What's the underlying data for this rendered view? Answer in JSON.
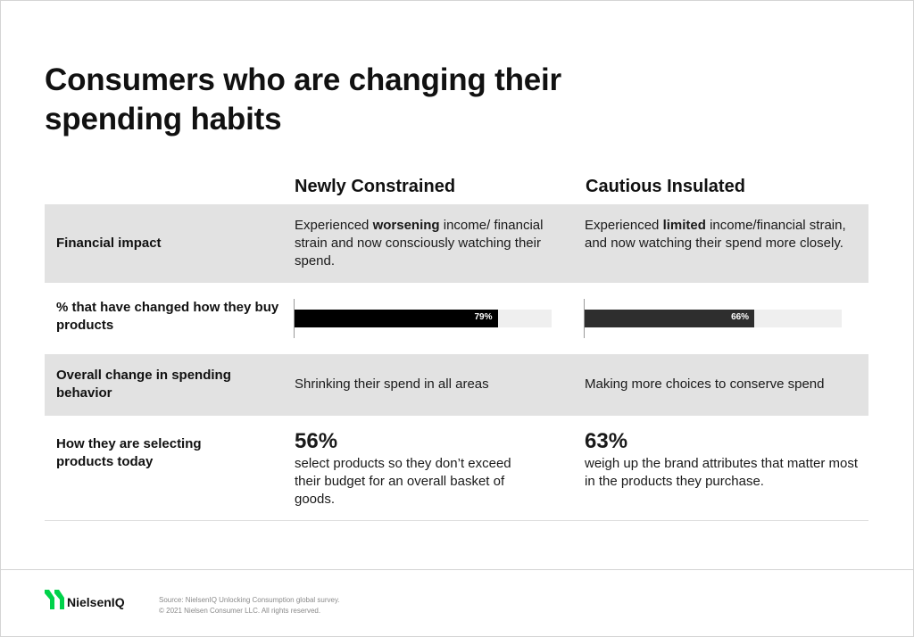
{
  "title": "Consumers who are changing their spending habits",
  "columns": [
    "Newly Constrained",
    "Cautious Insulated"
  ],
  "rows": {
    "financial_impact": {
      "label": "Financial impact",
      "a": {
        "pre": "Experienced ",
        "bold": "worsening",
        "post": " income/ financial strain and now consciously watching their spend."
      },
      "b": {
        "pre": "Experienced ",
        "bold": "limited",
        "post": " income/financial strain, and now watching their spend more closely."
      }
    },
    "changed": {
      "label": "% that have changed how they buy products",
      "a": {
        "value": 79,
        "text": "79%",
        "color": "#000000"
      },
      "b": {
        "value": 66,
        "text": "66%",
        "color": "#2e2e2e"
      }
    },
    "overall": {
      "label": "Overall change in spending behavior",
      "a": "Shrinking their spend in all areas",
      "b": "Making more choices to conserve spend"
    },
    "selecting": {
      "label": "How they are selecting products today",
      "a": {
        "big": "56%",
        "text": "select products so they don’t exceed their budget for an overall basket of goods."
      },
      "b": {
        "big": "63%",
        "text": "weigh up the brand attributes that matter most in the products they purchase."
      }
    }
  },
  "footer": {
    "logo_text": "NielsenIQ",
    "logo_icon": "nielseniq-logo-icon",
    "source": "Source: NielsenIQ Unlocking Consumption global survey.",
    "copyright": "© 2021 Nielsen Consumer LLC. All rights reserved."
  },
  "colors": {
    "row_gray": "#e2e2e2",
    "track": "#efefef",
    "logo_green": "#00d24a"
  }
}
